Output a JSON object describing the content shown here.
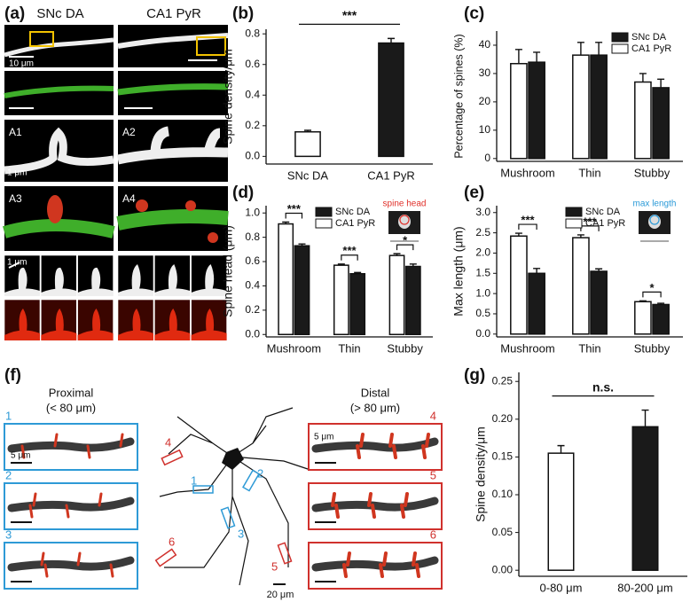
{
  "panels": {
    "a": {
      "label": "(a)",
      "columns": [
        "SNc DA",
        "CA1 PyR"
      ],
      "scale_bars": [
        "10 μm",
        "1 μm",
        "1 μm"
      ],
      "insets": [
        "A1",
        "A2",
        "A3",
        "A4"
      ]
    },
    "f": {
      "label": "(f)",
      "proximal": "Proximal",
      "proximal_range": "(< 80 μm)",
      "distal": "Distal",
      "distal_range": "(> 80 μm)",
      "segments": [
        "1",
        "2",
        "3",
        "4",
        "5",
        "6"
      ],
      "segment_scale": "5 μm",
      "neuron_scale": "20 μm"
    }
  },
  "chart_data": [
    {
      "panel_label": "(b)",
      "type": "bar",
      "categories": [
        "SNc DA",
        "CA1 PyR"
      ],
      "values": [
        0.16,
        0.74
      ],
      "errors": [
        0.01,
        0.03
      ],
      "colors": [
        "#ffffff",
        "#1a1a1a"
      ],
      "ylabel": "Spine density/μm",
      "ylim": [
        -0.05,
        0.83
      ],
      "yticks": [
        {
          "value": 0,
          "label": "0.0"
        },
        0.2,
        0.4,
        0.6,
        0.8
      ],
      "annotation": "***"
    },
    {
      "panel_label": "(c)",
      "type": "grouped-bar",
      "categories": [
        "Mushroom",
        "Thin",
        "Stubby"
      ],
      "series": [
        {
          "name": "SNc DA",
          "color": "#1a1a1a",
          "values": [
            34,
            36.5,
            25
          ],
          "errors": [
            3.5,
            4.5,
            3
          ]
        },
        {
          "name": "CA1 PyR",
          "color": "#ffffff",
          "values": [
            33.5,
            36.5,
            27
          ],
          "errors": [
            5,
            4.5,
            3
          ]
        }
      ],
      "ylabel": "Percentage of spines (%)",
      "ylim": [
        -1,
        45
      ],
      "yticks": [
        0,
        10,
        20,
        30,
        40
      ],
      "legend": "upper right"
    },
    {
      "panel_label": "(d)",
      "type": "grouped-bar",
      "categories": [
        "Mushroom",
        "Thin",
        "Stubby"
      ],
      "series": [
        {
          "name": "SNc DA",
          "color": "#1a1a1a",
          "values": [
            0.73,
            0.5,
            0.56
          ],
          "errors": [
            0.015,
            0.01,
            0.02
          ]
        },
        {
          "name": "CA1 PyR",
          "color": "#ffffff",
          "values": [
            0.91,
            0.57,
            0.65
          ],
          "errors": [
            0.015,
            0.01,
            0.015
          ]
        }
      ],
      "ylabel": "Spine head (μm)",
      "ylim": [
        -0.02,
        1.06
      ],
      "yticks": [
        {
          "value": 0,
          "label": "0.0"
        },
        0.2,
        0.4,
        0.6,
        0.8,
        {
          "value": 1,
          "label": "1.0"
        }
      ],
      "significance": [
        "***",
        "***",
        "*"
      ],
      "legend": "upper right",
      "inset_label": "spine head",
      "inset_color": "#e0302a"
    },
    {
      "panel_label": "(e)",
      "type": "grouped-bar",
      "categories": [
        "Mushroom",
        "Thin",
        "Stubby"
      ],
      "series": [
        {
          "name": "SNc DA",
          "color": "#1a1a1a",
          "values": [
            1.5,
            1.55,
            0.73
          ],
          "errors": [
            0.12,
            0.06,
            0.03
          ]
        },
        {
          "name": "CA1 PyR",
          "color": "#ffffff",
          "values": [
            2.42,
            2.38,
            0.8
          ],
          "errors": [
            0.07,
            0.07,
            0.02
          ]
        }
      ],
      "ylabel": "Max length (μm)",
      "ylim": [
        -0.07,
        3.17
      ],
      "yticks": [
        {
          "value": 0,
          "label": "0.0"
        },
        0.5,
        {
          "value": 1,
          "label": "1.0"
        },
        1.5,
        {
          "value": 2,
          "label": "2.0"
        },
        2.5,
        {
          "value": 3,
          "label": "3.0"
        }
      ],
      "significance": [
        "***",
        "***",
        "*"
      ],
      "legend": "upper right",
      "inset_label": "max length",
      "inset_color": "#2a9ad8"
    },
    {
      "panel_label": "(g)",
      "type": "bar",
      "categories": [
        "0-80 μm",
        "80-200 μm"
      ],
      "values": [
        0.155,
        0.19
      ],
      "errors": [
        0.01,
        0.022
      ],
      "colors": [
        "#ffffff",
        "#1a1a1a"
      ],
      "ylabel": "Spine density/μm",
      "ylim": [
        -0.008,
        0.262
      ],
      "yticks": [
        {
          "value": 0,
          "label": "0.00"
        },
        0.05,
        {
          "value": 0.1,
          "label": "0.10"
        },
        0.15,
        {
          "value": 0.2,
          "label": "0.20"
        },
        0.25
      ],
      "annotation": "n.s."
    }
  ]
}
